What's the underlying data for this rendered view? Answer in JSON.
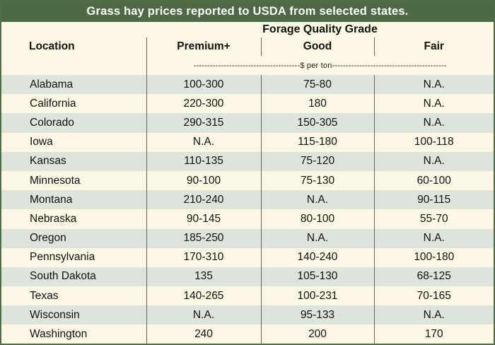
{
  "title": "Grass hay prices reported to USDA from selected states.",
  "group_header": "Forage Quality Grade",
  "columns": [
    "Location",
    "Premium+",
    "Good",
    "Fair"
  ],
  "unit_label": "---------------------------------------$ per ton------------------------------------------",
  "rows": [
    {
      "location": "Alabama",
      "premium": "100-300",
      "good": "75-80",
      "fair": "N.A."
    },
    {
      "location": "California",
      "premium": "220-300",
      "good": "180",
      "fair": "N.A."
    },
    {
      "location": "Colorado",
      "premium": "290-315",
      "good": "150-305",
      "fair": "N.A."
    },
    {
      "location": "Iowa",
      "premium": "N.A.",
      "good": "115-180",
      "fair": "100-118"
    },
    {
      "location": "Kansas",
      "premium": "110-135",
      "good": "75-120",
      "fair": "N.A."
    },
    {
      "location": "Minnesota",
      "premium": "90-100",
      "good": "75-130",
      "fair": "60-100"
    },
    {
      "location": "Montana",
      "premium": "210-240",
      "good": "N.A.",
      "fair": "90-115"
    },
    {
      "location": "Nebraska",
      "premium": "90-145",
      "good": "80-100",
      "fair": "55-70"
    },
    {
      "location": "Oregon",
      "premium": "185-250",
      "good": "N.A.",
      "fair": "N.A."
    },
    {
      "location": "Pennsylvania",
      "premium": "170-310",
      "good": "140-240",
      "fair": "100-180"
    },
    {
      "location": "South Dakota",
      "premium": "135",
      "good": "105-130",
      "fair": "68-125"
    },
    {
      "location": "Texas",
      "premium": "140-265",
      "good": "100-231",
      "fair": "70-165"
    },
    {
      "location": "Wisconsin",
      "premium": "N.A.",
      "good": "95-133",
      "fair": "N.A."
    },
    {
      "location": "Washington",
      "premium": "240",
      "good": "200",
      "fair": "170"
    }
  ],
  "colors": {
    "title_bar": "#4d6a44",
    "band": "#dde4dc",
    "background": "#fbf7e4"
  }
}
